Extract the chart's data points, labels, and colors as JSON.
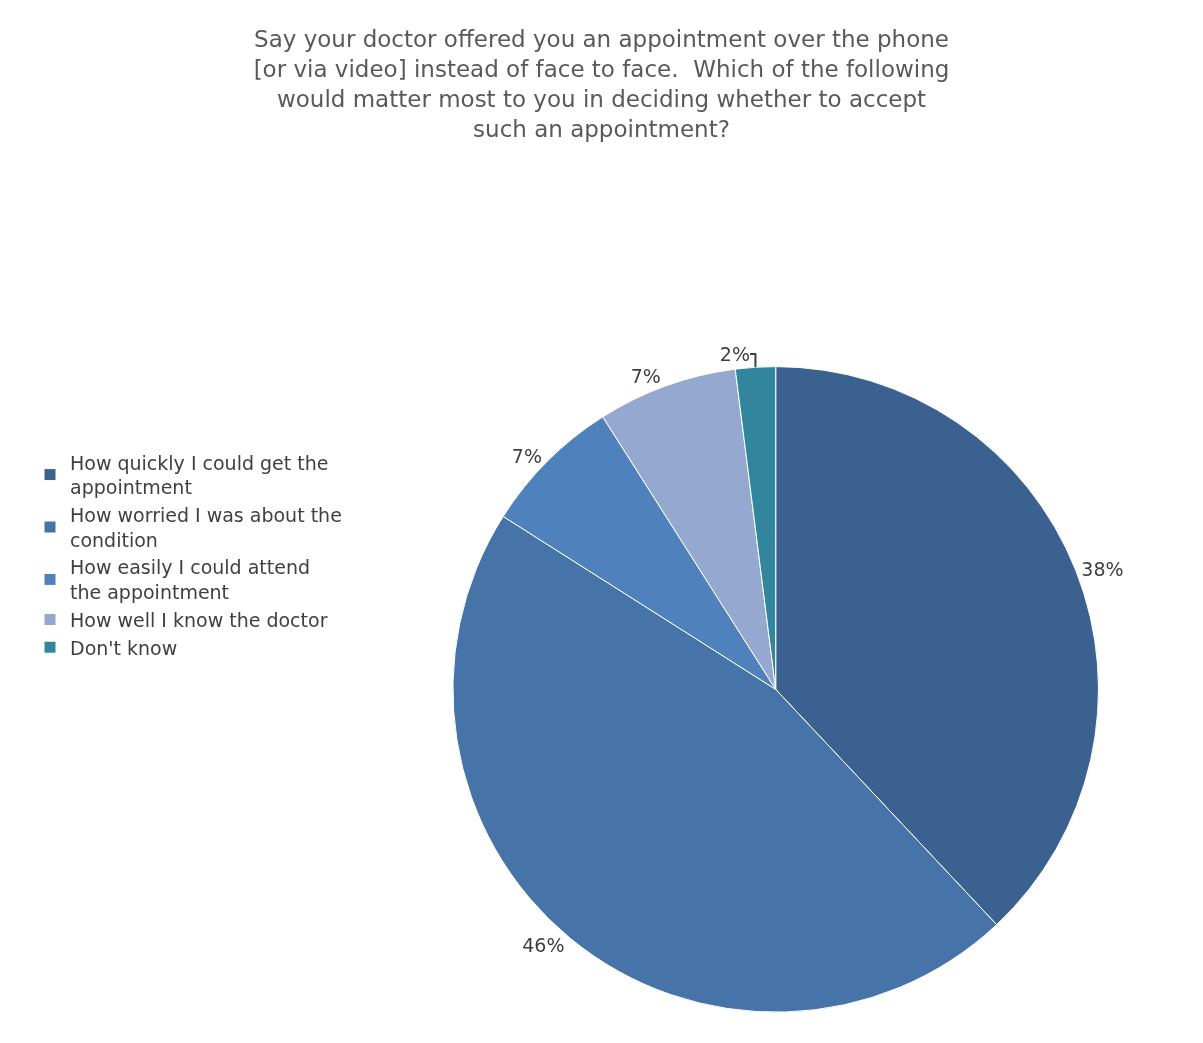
{
  "chart_data": {
    "type": "pie",
    "title": "Say your doctor offered you an appointment over the phone\n[or via video] instead of face to face.  Which of the following\nwould matter most to you in deciding whether to accept\nsuch an appointment?",
    "categories": [
      "How quickly I could get the appointment",
      "How worried I was about the condition",
      "How easily I could attend the appointment",
      "How well I know the doctor",
      "Don't know"
    ],
    "values": [
      38,
      46,
      7,
      7,
      2
    ],
    "value_labels": [
      "38%",
      "46%",
      "7%",
      "7%",
      "2%"
    ],
    "colors": [
      "#3b6190",
      "#4674a8",
      "#4f81bd",
      "#95a9d0",
      "#31859c"
    ],
    "legend": "left"
  }
}
